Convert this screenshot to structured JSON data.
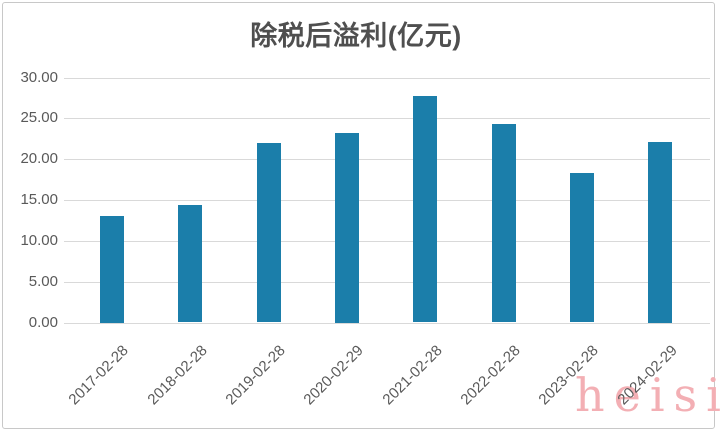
{
  "title": "除税后溢利(亿元)",
  "watermark": {
    "text": "heisi",
    "color": "#F3AFB4"
  },
  "colors": {
    "bar": "#1B7EAA",
    "gridline": "#D9D9D9",
    "axis_label": "#595959",
    "title": "#4F4F4F",
    "frame_border": "#C8C8C8",
    "background": "#FFFFFF"
  },
  "chart_data": {
    "type": "bar",
    "title": "除税后溢利(亿元)",
    "categories": [
      "2017-02-28",
      "2018-02-28",
      "2019-02-28",
      "2020-02-29",
      "2021-02-28",
      "2022-02-28",
      "2023-02-28",
      "2024-02-29"
    ],
    "values": [
      13.1,
      14.4,
      22.0,
      23.2,
      27.7,
      24.3,
      18.3,
      22.1
    ],
    "xlabel": "",
    "ylabel": "",
    "ylim": [
      0,
      30
    ],
    "yticks": [
      0,
      5,
      10,
      15,
      20,
      25,
      30
    ],
    "ytick_labels": [
      "0.00",
      "5.00",
      "10.00",
      "15.00",
      "20.00",
      "25.00",
      "30.00"
    ],
    "grid": true,
    "legend": "none",
    "bar_color": "#1B7EAA"
  }
}
